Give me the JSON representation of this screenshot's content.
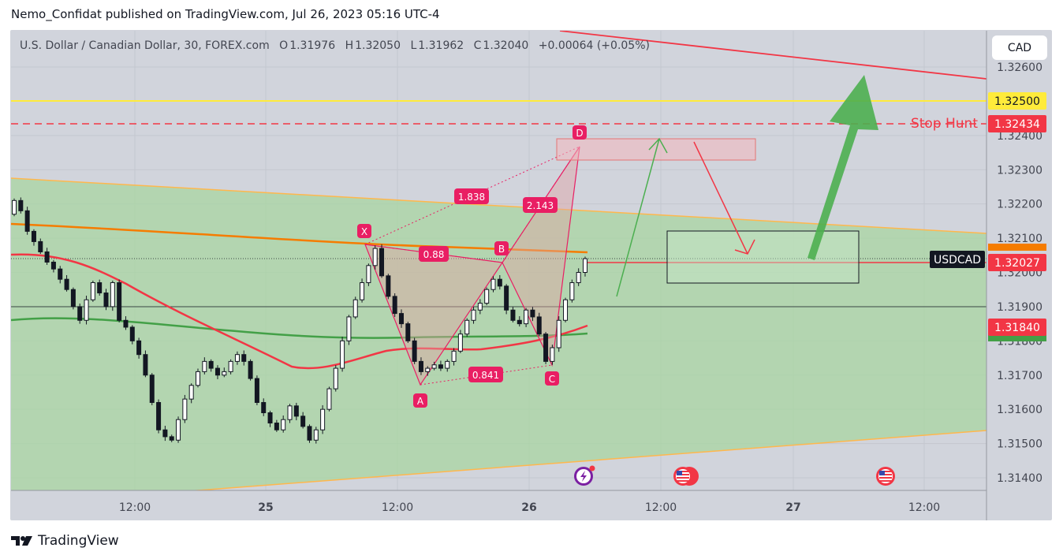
{
  "header": {
    "text": "Nemo_Confidat published on TradingView.com, Jul 26, 2023 05:16 UTC-4"
  },
  "legend": {
    "symbol": "U.S. Dollar / Canadian Dollar, 30, FOREX.com",
    "o_label": "O",
    "o": "1.31976",
    "h_label": "H",
    "h": "1.32050",
    "l_label": "L",
    "l": "1.31962",
    "c_label": "C",
    "c": "1.32040",
    "change": "+0.00064 (+0.05%)"
  },
  "currency_button": "CAD",
  "brand": "TradingView",
  "chart_data": {
    "type": "candlestick",
    "y_ticks": [
      "1.32600",
      "1.32400",
      "1.32300",
      "1.32200",
      "1.32100",
      "1.32000",
      "1.31900",
      "1.31800",
      "1.31700",
      "1.31600",
      "1.31500",
      "1.31400"
    ],
    "x_ticks": [
      "12:00",
      "25",
      "12:00",
      "26",
      "12:00",
      "27",
      "12:00"
    ],
    "price_tags": [
      {
        "value": "1.32500",
        "color": "#ffeb3b"
      },
      {
        "value": "1.32434",
        "color": "#f23645",
        "label": "Stop Hunt"
      },
      {
        "value": "1.32027",
        "color": "#f23645",
        "label": "USDCAD"
      },
      {
        "value": "1.31840",
        "color": "#f23645"
      }
    ],
    "harmonic_points": [
      "X",
      "A",
      "B",
      "C",
      "D"
    ],
    "ratios": [
      "1.838",
      "2.143",
      "0.88",
      "0.841"
    ],
    "closes": [
      1.3221,
      1.3218,
      1.3212,
      1.3209,
      1.3206,
      1.3203,
      1.3201,
      1.3198,
      1.3195,
      1.319,
      1.3186,
      1.3192,
      1.3197,
      1.3194,
      1.319,
      1.3197,
      1.3186,
      1.3184,
      1.318,
      1.3176,
      1.317,
      1.3162,
      1.3154,
      1.3152,
      1.3151,
      1.3157,
      1.3163,
      1.3167,
      1.3171,
      1.3174,
      1.3172,
      1.317,
      1.3171,
      1.3174,
      1.3176,
      1.3174,
      1.3169,
      1.3162,
      1.3159,
      1.3156,
      1.3154,
      1.3157,
      1.3161,
      1.3158,
      1.3155,
      1.3151,
      1.3154,
      1.316,
      1.3166,
      1.3172,
      1.318,
      1.3187,
      1.3192,
      1.3197,
      1.3202,
      1.3207,
      1.3199,
      1.3193,
      1.3188,
      1.3185,
      1.318,
      1.3174,
      1.3171,
      1.3172,
      1.3173,
      1.3172,
      1.3174,
      1.3177,
      1.3182,
      1.3186,
      1.3189,
      1.3191,
      1.3195,
      1.3198,
      1.3196,
      1.3189,
      1.3186,
      1.3185,
      1.3189,
      1.3187,
      1.3182,
      1.3174,
      1.3178,
      1.3186,
      1.3192,
      1.3197,
      1.32,
      1.3204
    ]
  }
}
